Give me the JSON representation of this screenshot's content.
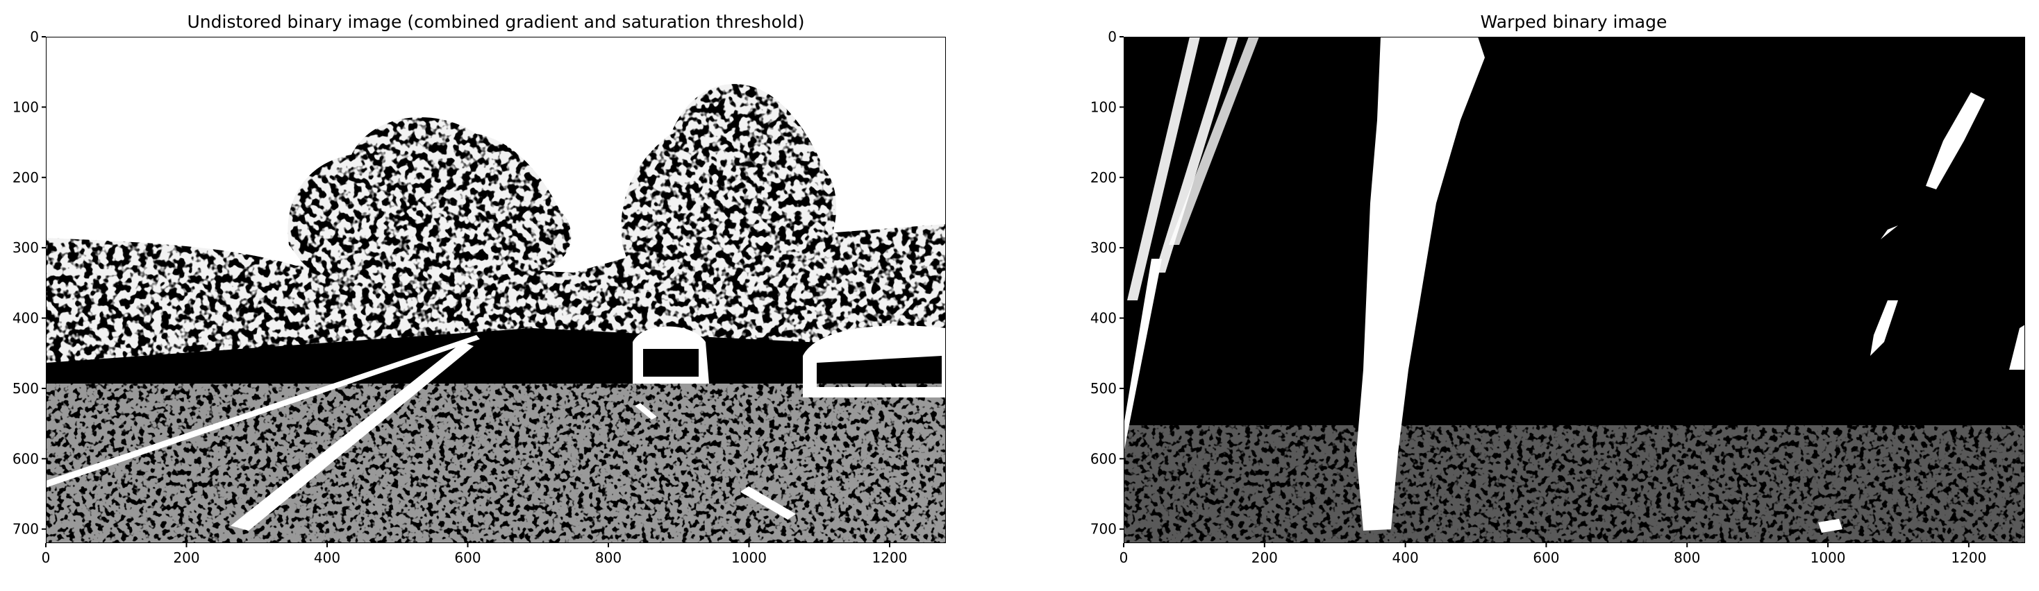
{
  "chart_data": [
    {
      "type": "image",
      "title": "Undistored binary image (combined gradient and saturation threshold)",
      "x_ticks": [
        0,
        200,
        400,
        600,
        800,
        1000,
        1200
      ],
      "y_ticks": [
        0,
        100,
        200,
        300,
        400,
        500,
        600,
        700
      ],
      "xlim": [
        0,
        1280
      ],
      "ylim": [
        720,
        0
      ],
      "colormap": "binary (black/white)"
    },
    {
      "type": "image",
      "title": "Warped binary image",
      "x_ticks": [
        0,
        200,
        400,
        600,
        800,
        1000,
        1200
      ],
      "y_ticks": [
        0,
        100,
        200,
        300,
        400,
        500,
        600,
        700
      ],
      "xlim": [
        0,
        1280
      ],
      "ylim": [
        720,
        0
      ],
      "colormap": "binary (black/white)"
    }
  ]
}
